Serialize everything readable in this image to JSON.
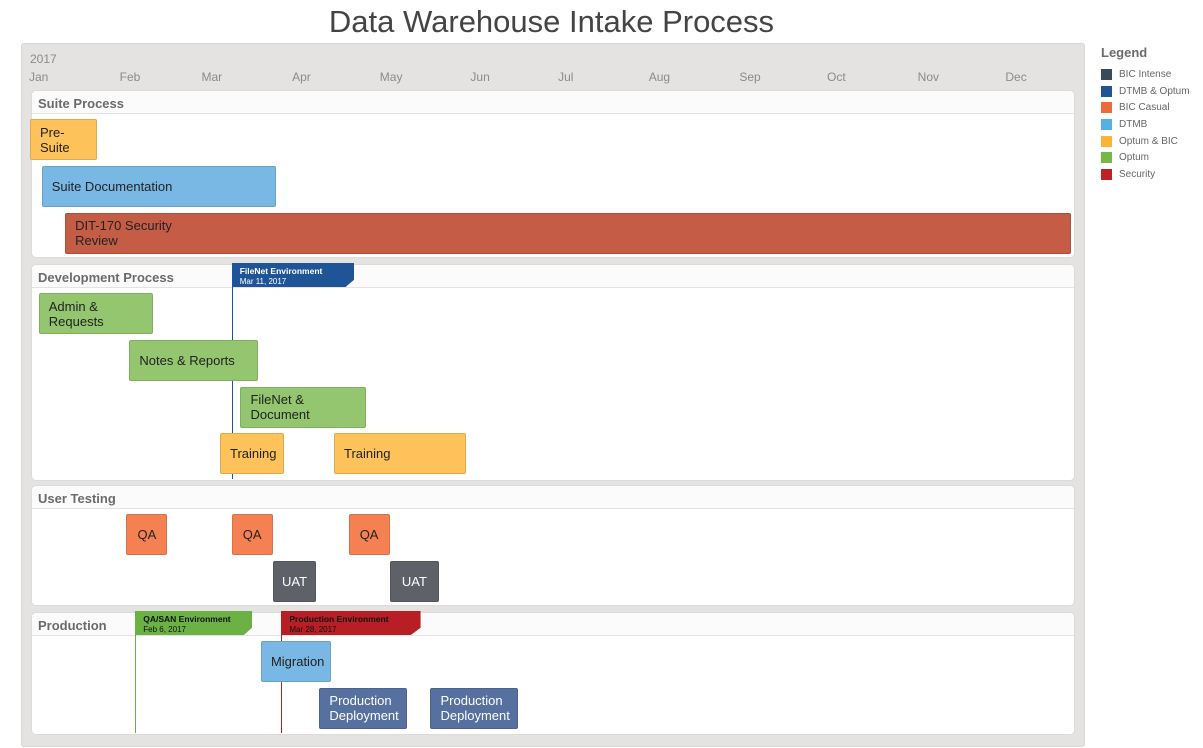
{
  "chart_data": {
    "type": "gantt",
    "title": "Data Warehouse Intake Process",
    "year": "2017",
    "months": [
      "Jan",
      "Feb",
      "Mar",
      "Apr",
      "May",
      "Jun",
      "Jul",
      "Aug",
      "Sep",
      "Oct",
      "Nov",
      "Dec"
    ],
    "legend_title": "Legend",
    "legend": [
      {
        "name": "BIC Intense",
        "color": "#3b4a59"
      },
      {
        "name": "DTMB & Optum",
        "color": "#1d5596"
      },
      {
        "name": "BIC Casual",
        "color": "#ee6a3a"
      },
      {
        "name": "DTMB",
        "color": "#55b1e5"
      },
      {
        "name": "Optum & BIC",
        "color": "#fcb437"
      },
      {
        "name": "Optum",
        "color": "#76b843"
      },
      {
        "name": "Security",
        "color": "#bb2326"
      }
    ],
    "sections": [
      {
        "name": "Suite Process",
        "tasks": [
          {
            "label": "Pre-\nSuite",
            "start": "2017-01-01",
            "end": "2017-01-24",
            "color": "#fec25a",
            "row": 0
          },
          {
            "label": "Suite Documentation",
            "start": "2017-01-05",
            "end": "2017-03-26",
            "color": "#79b8e5",
            "row": 1
          },
          {
            "label": "DIT-170 Security\nReview",
            "start": "2017-01-13",
            "end": "2017-12-23",
            "color": "#c55c46",
            "row": 2
          }
        ],
        "milestones": []
      },
      {
        "name": "Development Process",
        "tasks": [
          {
            "label": "Admin &\nRequests",
            "start": "2017-01-04",
            "end": "2017-02-12",
            "color": "#93c66e",
            "row": 0
          },
          {
            "label": "Notes & Reports",
            "start": "2017-02-04",
            "end": "2017-03-20",
            "color": "#93c66e",
            "row": 1
          },
          {
            "label": "FileNet &\nDocument",
            "start": "2017-03-14",
            "end": "2017-04-26",
            "color": "#93c66e",
            "row": 2
          },
          {
            "label": "Training",
            "start": "2017-03-07",
            "end": "2017-03-29",
            "color": "#fec25a",
            "row": 3
          },
          {
            "label": "Training",
            "start": "2017-04-15",
            "end": "2017-05-30",
            "color": "#fec25a",
            "row": 3
          }
        ],
        "milestones": [
          {
            "name": "FileNet Environment",
            "date_label": "Mar 11, 2017",
            "date": "2017-03-11",
            "color": "#1f5597",
            "text_color": "#ffffff"
          }
        ]
      },
      {
        "name": "User Testing",
        "tasks": [
          {
            "label": "QA",
            "start": "2017-02-03",
            "end": "2017-02-17",
            "color": "#f58152",
            "row": 0
          },
          {
            "label": "QA",
            "start": "2017-03-11",
            "end": "2017-03-25",
            "color": "#f58152",
            "row": 0
          },
          {
            "label": "QA",
            "start": "2017-04-20",
            "end": "2017-05-04",
            "color": "#f58152",
            "row": 0
          },
          {
            "label": "UAT",
            "start": "2017-03-25",
            "end": "2017-04-09",
            "color": "#5e6167",
            "row": 1
          },
          {
            "label": "UAT",
            "start": "2017-05-04",
            "end": "2017-05-21",
            "color": "#5e6167",
            "row": 1
          }
        ],
        "milestones": []
      },
      {
        "name": "Production",
        "tasks": [
          {
            "label": "Migration",
            "start": "2017-03-21",
            "end": "2017-04-14",
            "color": "#79b8e5",
            "row": 0
          },
          {
            "label": "Production\nDeployment",
            "start": "2017-04-10",
            "end": "2017-05-10",
            "color": "#56709f",
            "row": 1
          },
          {
            "label": "Production\nDeployment",
            "start": "2017-05-18",
            "end": "2017-06-17",
            "color": "#56709f",
            "row": 1
          }
        ],
        "milestones": [
          {
            "name": "QA/SAN Environment",
            "date_label": "Feb 6, 2017",
            "date": "2017-02-06",
            "color": "#6bb244",
            "text_color": "#111111"
          },
          {
            "name": "Production Environment",
            "date_label": "Mar 28, 2017",
            "date": "2017-03-28",
            "color": "#b71f25",
            "text_color": "#111111"
          }
        ]
      }
    ]
  }
}
